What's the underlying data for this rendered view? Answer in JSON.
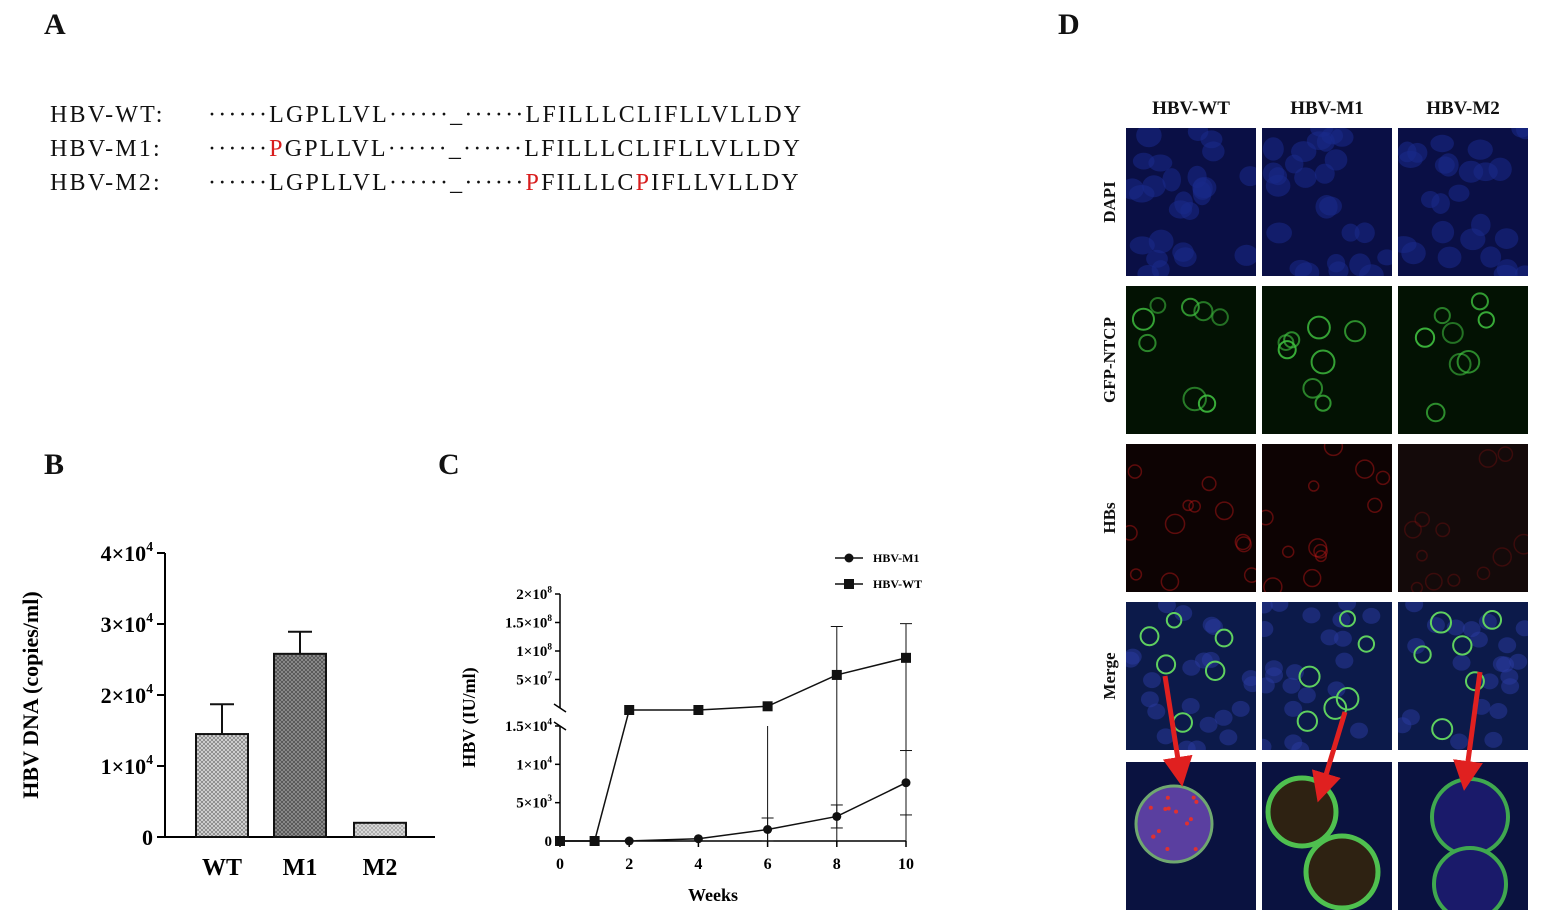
{
  "panels": {
    "a": "A",
    "b": "B",
    "c": "C",
    "d": "D"
  },
  "sequences": [
    {
      "label": "HBV-WT:",
      "s1": "······",
      "m1": "",
      "s2": "LGPLLVL······_······",
      "m2": "",
      "s3": "LFILLLC",
      "m3": "",
      "s4": "LIFLLVLLDY"
    },
    {
      "label": "HBV-M1:",
      "s1": "······",
      "m1": "P",
      "s2": "GPLLVL······_······",
      "m2": "",
      "s3": "LFILLLC",
      "m3": "",
      "s4": "LIFLLVLLDY"
    },
    {
      "label": "HBV-M2:",
      "s1": "······",
      "m1": "",
      "s2": "LGPLLVL······_······",
      "m2": "P",
      "s3": "FILLLC",
      "m3": "P",
      "s4": "IFLLVLLDY"
    }
  ],
  "chart_b": {
    "type": "bar",
    "ylabel": "HBV DNA (copies/ml)",
    "categories": [
      "WT",
      "M1",
      "M2"
    ],
    "values": [
      14500,
      25800,
      2000
    ],
    "errors": [
      4200,
      3100,
      0
    ],
    "ylim": [
      0,
      40000
    ],
    "yticks": [
      {
        "v": 0,
        "base": "0",
        "exp": ""
      },
      {
        "v": 10000,
        "base": "1×10",
        "exp": "4"
      },
      {
        "v": 20000,
        "base": "2×10",
        "exp": "4"
      },
      {
        "v": 30000,
        "base": "3×10",
        "exp": "4"
      },
      {
        "v": 40000,
        "base": "4×10",
        "exp": "4"
      }
    ]
  },
  "chart_data": {
    "type": "line",
    "xlabel": "Weeks",
    "ylabel": "HBV (IU/ml)",
    "x": [
      0,
      1,
      2,
      4,
      6,
      8,
      10
    ],
    "xticks": [
      "0",
      "2",
      "4",
      "6",
      "8",
      "10"
    ],
    "xtick_values": [
      0,
      2,
      4,
      6,
      8,
      10
    ],
    "y_axis_break": true,
    "lower_ylim": [
      0,
      15000
    ],
    "upper_ylim": [
      0,
      200000000
    ],
    "lower_yticks": [
      {
        "v": 0,
        "base": "0",
        "exp": ""
      },
      {
        "v": 5000,
        "base": "5×10",
        "exp": "3"
      },
      {
        "v": 10000,
        "base": "1×10",
        "exp": "4"
      },
      {
        "v": 15000,
        "base": "1.5×10",
        "exp": "4"
      }
    ],
    "upper_yticks": [
      {
        "v": 50000000,
        "base": "5×10",
        "exp": "7"
      },
      {
        "v": 100000000,
        "base": "1×10",
        "exp": "8"
      },
      {
        "v": 150000000,
        "base": "1.5×10",
        "exp": "8"
      },
      {
        "v": 200000000,
        "base": "2×10",
        "exp": "8"
      }
    ],
    "series": [
      {
        "name": "HBV-M1",
        "marker": "circle",
        "values": [
          0,
          0,
          0,
          300,
          1500,
          3200,
          7600
        ],
        "errors": [
          0,
          0,
          0,
          0,
          1500,
          1500,
          4200
        ]
      },
      {
        "name": "HBV-WT",
        "marker": "square",
        "x": [
          0,
          1,
          2,
          4,
          6,
          8,
          10
        ],
        "values": [
          0,
          0,
          0,
          0,
          3000000,
          58000000,
          88000000
        ],
        "errors": [
          0,
          0,
          0,
          0,
          0,
          85000000,
          60000000
        ]
      }
    ]
  },
  "panel_d": {
    "columns": [
      "HBV-WT",
      "HBV-M1",
      "HBV-M2"
    ],
    "rows": [
      "DAPI",
      "GFP-NTCP",
      "HBs",
      "Merge"
    ]
  }
}
